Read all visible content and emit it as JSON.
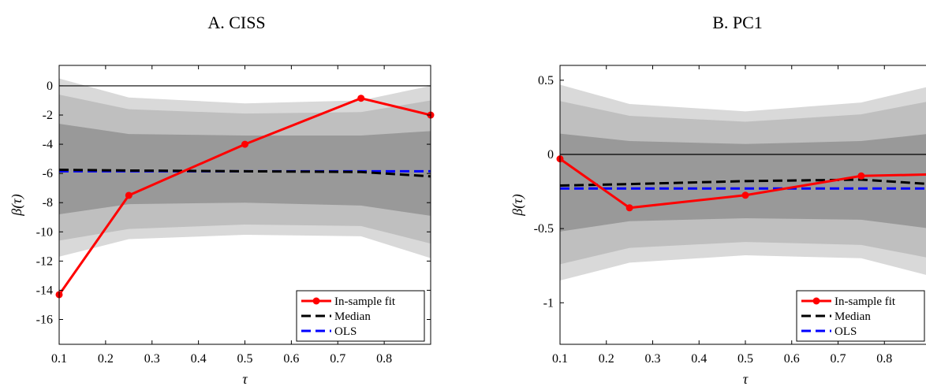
{
  "chart_data": [
    {
      "type": "line",
      "title": "A. CISS",
      "xlabel": "τ",
      "ylabel": "β(τ)",
      "xlim": [
        0.1,
        0.9
      ],
      "ylim": [
        -17.7,
        1.4
      ],
      "xticks": [
        0.1,
        0.2,
        0.3,
        0.4,
        0.5,
        0.6,
        0.7,
        0.8
      ],
      "xtick_labels": [
        "0.1",
        "0.2",
        "0.3",
        "0.4",
        "0.5",
        "0.6",
        "0.7",
        "0.8"
      ],
      "yticks": [
        0,
        -2,
        -4,
        -6,
        -8,
        -10,
        -12,
        -14,
        -16
      ],
      "ytick_labels": [
        "0",
        "-2",
        "-4",
        "-6",
        "-8",
        "-10",
        "-12",
        "-14",
        "-16"
      ],
      "x": [
        0.1,
        0.25,
        0.5,
        0.75,
        0.9
      ],
      "bands": [
        {
          "level": "outer",
          "color": "#d9d9d9",
          "upper": [
            0.5,
            -0.8,
            -1.2,
            -1.0,
            0.0
          ],
          "lower": [
            -11.7,
            -10.5,
            -10.2,
            -10.3,
            -11.8
          ]
        },
        {
          "level": "middle",
          "color": "#bfbfbf",
          "upper": [
            -0.6,
            -1.6,
            -1.9,
            -1.8,
            -1.0
          ],
          "lower": [
            -10.6,
            -9.8,
            -9.5,
            -9.6,
            -10.8
          ]
        },
        {
          "level": "inner",
          "color": "#999999",
          "upper": [
            -2.6,
            -3.3,
            -3.4,
            -3.4,
            -3.1
          ],
          "lower": [
            -8.8,
            -8.1,
            -8.0,
            -8.2,
            -8.9
          ]
        }
      ],
      "zero_line": 0,
      "series": [
        {
          "name": "In-sample fit",
          "color": "#ff0000",
          "style": "solid-marker",
          "x": [
            0.1,
            0.25,
            0.5,
            0.75,
            0.9
          ],
          "values": [
            -14.3,
            -7.5,
            -4.0,
            -0.85,
            -2.0
          ]
        },
        {
          "name": "Median",
          "color": "#000000",
          "style": "dashed",
          "x": [
            0.1,
            0.25,
            0.5,
            0.75,
            0.9
          ],
          "values": [
            -5.75,
            -5.8,
            -5.85,
            -5.9,
            -6.2
          ]
        },
        {
          "name": "OLS",
          "color": "#0000ff",
          "style": "dashed",
          "x": [
            0.1,
            0.9
          ],
          "values": [
            -5.85,
            -5.85
          ]
        }
      ],
      "legend": "bottom-right"
    },
    {
      "type": "line",
      "title": "B. PC1",
      "xlabel": "τ",
      "ylabel": "β(τ)",
      "xlim": [
        0.1,
        0.9
      ],
      "ylim": [
        -1.28,
        0.6
      ],
      "xticks": [
        0.1,
        0.2,
        0.3,
        0.4,
        0.5,
        0.6,
        0.7,
        0.8
      ],
      "xtick_labels": [
        "0.1",
        "0.2",
        "0.3",
        "0.4",
        "0.5",
        "0.6",
        "0.7",
        "0.8"
      ],
      "yticks": [
        0.5,
        0,
        -0.5,
        -1
      ],
      "ytick_labels": [
        "0.5",
        "0",
        "-0.5",
        "-1"
      ],
      "x": [
        0.1,
        0.25,
        0.5,
        0.75,
        0.9
      ],
      "bands": [
        {
          "level": "outer",
          "color": "#d9d9d9",
          "upper": [
            0.47,
            0.34,
            0.29,
            0.35,
            0.46
          ],
          "lower": [
            -0.85,
            -0.73,
            -0.68,
            -0.7,
            -0.82
          ]
        },
        {
          "level": "middle",
          "color": "#bfbfbf",
          "upper": [
            0.36,
            0.26,
            0.22,
            0.27,
            0.36
          ],
          "lower": [
            -0.74,
            -0.63,
            -0.59,
            -0.61,
            -0.7
          ]
        },
        {
          "level": "inner",
          "color": "#999999",
          "upper": [
            0.14,
            0.09,
            0.07,
            0.09,
            0.14
          ],
          "lower": [
            -0.52,
            -0.45,
            -0.43,
            -0.44,
            -0.5
          ]
        }
      ],
      "zero_line": 0,
      "series": [
        {
          "name": "In-sample fit",
          "color": "#ff0000",
          "style": "solid-marker",
          "x": [
            0.1,
            0.25,
            0.5,
            0.75,
            0.9
          ],
          "values": [
            -0.03,
            -0.36,
            -0.275,
            -0.145,
            -0.135
          ]
        },
        {
          "name": "Median",
          "color": "#000000",
          "style": "dashed",
          "x": [
            0.1,
            0.25,
            0.5,
            0.75,
            0.9
          ],
          "values": [
            -0.21,
            -0.2,
            -0.18,
            -0.17,
            -0.2
          ]
        },
        {
          "name": "OLS",
          "color": "#0000ff",
          "style": "dashed",
          "x": [
            0.1,
            0.9
          ],
          "values": [
            -0.23,
            -0.23
          ]
        }
      ],
      "legend": "bottom-right"
    }
  ]
}
